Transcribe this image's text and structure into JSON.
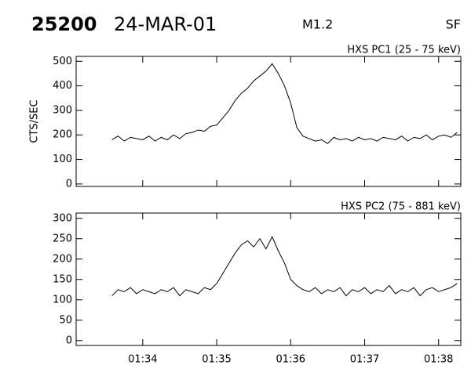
{
  "header": {
    "event_id": "25200",
    "date": "24-MAR-01",
    "goes_class": "M1.2",
    "flag": "SF"
  },
  "chart_data": [
    {
      "type": "line",
      "title": "HXS PC1 (25 - 75 keV)",
      "y_label": "CTS/SEC",
      "color": "#000000",
      "x": [
        5615,
        5620,
        5625,
        5630,
        5635,
        5640,
        5645,
        5650,
        5655,
        5660,
        5665,
        5670,
        5675,
        5680,
        5685,
        5690,
        5695,
        5700,
        5705,
        5710,
        5715,
        5720,
        5725,
        5730,
        5735,
        5740,
        5745,
        5750,
        5755,
        5760,
        5765,
        5770,
        5775,
        5780,
        5785,
        5790,
        5795,
        5800,
        5805,
        5810,
        5815,
        5820,
        5825,
        5830,
        5835,
        5840,
        5845,
        5850,
        5855,
        5860,
        5865,
        5870,
        5875,
        5880,
        5885,
        5890,
        5895
      ],
      "values": [
        180,
        195,
        175,
        190,
        185,
        180,
        195,
        175,
        190,
        180,
        200,
        185,
        205,
        210,
        220,
        215,
        235,
        240,
        270,
        300,
        340,
        370,
        390,
        420,
        440,
        460,
        490,
        450,
        400,
        330,
        230,
        195,
        185,
        175,
        180,
        165,
        190,
        180,
        185,
        175,
        190,
        180,
        185,
        175,
        190,
        185,
        180,
        195,
        175,
        190,
        185,
        200,
        180,
        195,
        200,
        190,
        210
      ],
      "xlim": [
        5586,
        5898
      ],
      "ylim": [
        -10,
        520
      ],
      "yticks": [
        0,
        100,
        200,
        300,
        400,
        500
      ]
    },
    {
      "type": "line",
      "title": "HXS PC2 (75 - 881 keV)",
      "color": "#000000",
      "x": [
        5615,
        5620,
        5625,
        5630,
        5635,
        5640,
        5645,
        5650,
        5655,
        5660,
        5665,
        5670,
        5675,
        5680,
        5685,
        5690,
        5695,
        5700,
        5705,
        5710,
        5715,
        5720,
        5725,
        5730,
        5735,
        5740,
        5745,
        5750,
        5755,
        5760,
        5765,
        5770,
        5775,
        5780,
        5785,
        5790,
        5795,
        5800,
        5805,
        5810,
        5815,
        5820,
        5825,
        5830,
        5835,
        5840,
        5845,
        5850,
        5855,
        5860,
        5865,
        5870,
        5875,
        5880,
        5885,
        5890,
        5895
      ],
      "values": [
        110,
        125,
        120,
        130,
        115,
        125,
        120,
        115,
        125,
        120,
        130,
        110,
        125,
        120,
        115,
        130,
        125,
        140,
        165,
        190,
        215,
        235,
        245,
        230,
        250,
        225,
        255,
        220,
        190,
        150,
        135,
        125,
        120,
        130,
        115,
        125,
        120,
        130,
        110,
        125,
        120,
        130,
        115,
        125,
        120,
        135,
        115,
        125,
        120,
        130,
        110,
        125,
        130,
        120,
        125,
        130,
        140
      ],
      "xlim": [
        5586,
        5898
      ],
      "ylim": [
        -12,
        313
      ],
      "yticks": [
        0,
        50,
        100,
        150,
        200,
        250,
        300
      ],
      "xticks": [
        {
          "value": 5640,
          "label": "01:34"
        },
        {
          "value": 5700,
          "label": "01:35"
        },
        {
          "value": 5760,
          "label": "01:36"
        },
        {
          "value": 5820,
          "label": "01:37"
        },
        {
          "value": 5880,
          "label": "01:38"
        }
      ]
    }
  ]
}
